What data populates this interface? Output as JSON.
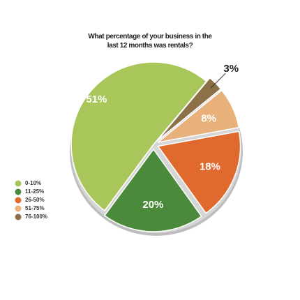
{
  "chart_data": {
    "type": "pie",
    "title": "What percentage of your business in the last 12 months was rentals?",
    "categories": [
      "0-10%",
      "11-25%",
      "26-50%",
      "51-75%",
      "76-100%"
    ],
    "values": [
      51,
      20,
      18,
      8,
      3
    ],
    "value_labels": [
      "51%",
      "20%",
      "18%",
      "8%",
      "3%"
    ],
    "colors": [
      "#a8c65a",
      "#4a8a3a",
      "#e06a2e",
      "#e8b07a",
      "#8c7048"
    ],
    "legend": "left"
  }
}
